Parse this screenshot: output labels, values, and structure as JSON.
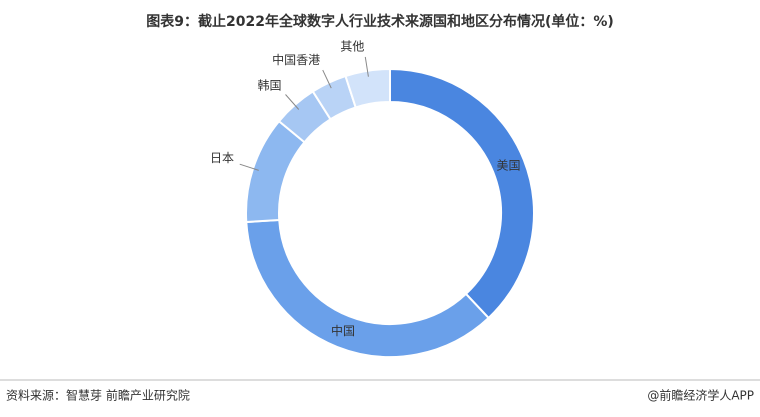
{
  "chart_data": {
    "type": "donut",
    "title": "图表9：截止2022年全球数字人行业技术来源国和地区分布情况(单位：%)",
    "categories": [
      "美国",
      "中国",
      "日本",
      "韩国",
      "中国香港",
      "其他"
    ],
    "values": [
      38,
      36,
      12,
      5,
      4,
      5
    ],
    "colors": [
      "#4a86e0",
      "#6aa0ea",
      "#8db8f0",
      "#a6c7f3",
      "#b9d3f6",
      "#d2e3fa"
    ],
    "source": "资料来源：智慧芽 前瞻产业研究院",
    "credit": "@前瞻经济学人APP"
  }
}
